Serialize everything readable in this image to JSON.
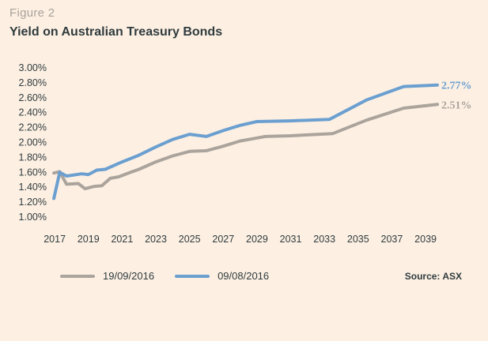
{
  "figure_label": "Figure 2",
  "figure_title": "Yield on Australian Treasury Bonds",
  "source": "Source: ASX",
  "colors": {
    "series1": "#aba49c",
    "series2": "#6b9fd0",
    "background": "#fdf0e3"
  },
  "chart_data": {
    "type": "line",
    "title": "Yield on Australian Treasury Bonds",
    "xlabel": "",
    "ylabel": "",
    "xlim": [
      2016.9,
      2039.7
    ],
    "ylim": [
      1.0,
      3.0
    ],
    "x_ticks": [
      "2017",
      "2019",
      "2021",
      "2023",
      "2025",
      "2027",
      "2029",
      "2031",
      "2033",
      "2035",
      "2037",
      "2039"
    ],
    "y_ticks": [
      "3.00%",
      "2.80%",
      "2.60%",
      "2.40%",
      "2.20%",
      "2.00%",
      "1.80%",
      "1.60%",
      "1.40%",
      "1.20%",
      "1.00%"
    ],
    "grid": false,
    "legend": "bottom",
    "series": [
      {
        "name": "19/09/2016",
        "color": "#aba49c",
        "end_label": "2.51%",
        "points": [
          [
            2016.95,
            1.59
          ],
          [
            2017.3,
            1.61
          ],
          [
            2017.7,
            1.44
          ],
          [
            2018.4,
            1.45
          ],
          [
            2018.8,
            1.38
          ],
          [
            2019.3,
            1.41
          ],
          [
            2019.8,
            1.42
          ],
          [
            2020.3,
            1.52
          ],
          [
            2020.8,
            1.54
          ],
          [
            2021.5,
            1.6
          ],
          [
            2022.0,
            1.64
          ],
          [
            2023.0,
            1.74
          ],
          [
            2024.0,
            1.82
          ],
          [
            2025.0,
            1.88
          ],
          [
            2026.0,
            1.89
          ],
          [
            2027.0,
            1.95
          ],
          [
            2028.0,
            2.02
          ],
          [
            2029.0,
            2.06
          ],
          [
            2029.5,
            2.08
          ],
          [
            2031.0,
            2.09
          ],
          [
            2033.5,
            2.12
          ],
          [
            2035.5,
            2.3
          ],
          [
            2037.7,
            2.46
          ],
          [
            2039.7,
            2.51
          ]
        ]
      },
      {
        "name": "09/08/2016",
        "color": "#6b9fd0",
        "end_label": "2.77%",
        "points": [
          [
            2016.95,
            1.25
          ],
          [
            2017.3,
            1.6
          ],
          [
            2017.7,
            1.55
          ],
          [
            2018.0,
            1.56
          ],
          [
            2018.6,
            1.58
          ],
          [
            2019.0,
            1.57
          ],
          [
            2019.5,
            1.63
          ],
          [
            2020.0,
            1.64
          ],
          [
            2021.0,
            1.74
          ],
          [
            2022.0,
            1.83
          ],
          [
            2023.0,
            1.94
          ],
          [
            2024.0,
            2.04
          ],
          [
            2025.0,
            2.11
          ],
          [
            2026.0,
            2.08
          ],
          [
            2027.0,
            2.16
          ],
          [
            2028.0,
            2.23
          ],
          [
            2029.0,
            2.28
          ],
          [
            2031.0,
            2.29
          ],
          [
            2033.3,
            2.31
          ],
          [
            2035.5,
            2.57
          ],
          [
            2037.7,
            2.75
          ],
          [
            2039.7,
            2.77
          ]
        ]
      }
    ]
  }
}
